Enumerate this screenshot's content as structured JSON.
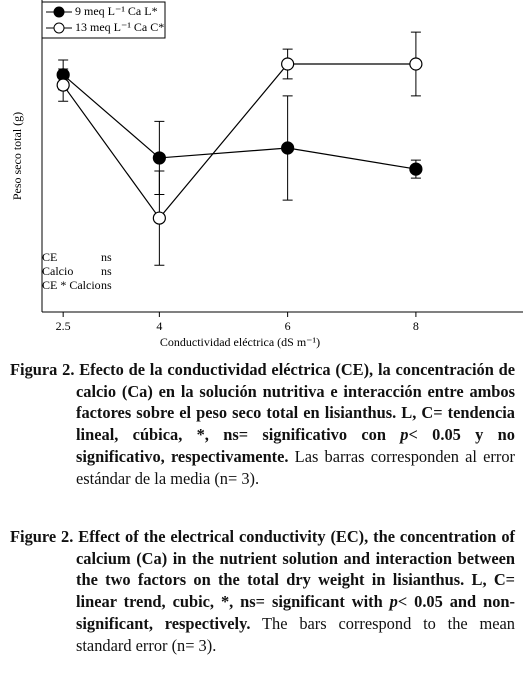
{
  "chart_data": {
    "type": "line",
    "ylabel": "Peso seco total (g)",
    "xlabel": "Conductividad eléctrica (dS m⁻¹)",
    "x": [
      2.5,
      4,
      6,
      8
    ],
    "xlim": [
      2.17,
      9.67
    ],
    "xticks": [
      2.5,
      4,
      6,
      8
    ],
    "ylim": [
      0,
      100
    ],
    "series": [
      {
        "name": "9 meq L⁻¹ Ca L*",
        "color": "#000000",
        "filled": true,
        "values": [
          76.5,
          49.7,
          52.9,
          46.1
        ],
        "errors": [
          4.8,
          11.8,
          16.8,
          2.9
        ]
      },
      {
        "name": "13 meq L⁻¹ Ca C*",
        "color": "#000000",
        "filled": false,
        "values": [
          73.2,
          30.3,
          80,
          80
        ],
        "errors": [
          5.2,
          15.2,
          4.8,
          10.3
        ]
      }
    ],
    "legend": "upper-left",
    "annotations": [
      [
        "CE",
        "ns"
      ],
      [
        "Calcio",
        "ns"
      ],
      [
        "CE * Calcio",
        "ns"
      ]
    ]
  },
  "captions": {
    "spanish": {
      "bold1": "Figura 2. Efecto de la conductividad eléctrica (CE), la concentración de calcio (Ca) en la solución nutritiva e interacción entre ambos factores sobre el peso seco total en lisianthus. L, C= tendencia lineal, cúbica, *, ns= significativo con ",
      "italic": "p",
      "bold2": "< 0.05 y no significativo, respectivamente.",
      "normal": " Las barras corresponden al error estándar de la media (n= 3)."
    },
    "english": {
      "bold1": "Figure 2. Effect of the electrical conductivity (EC), the concentration of calcium (Ca) in the nutrient solution and interaction between the two factors on the total dry weight in lisianthus. L, C= linear trend, cubic, *, ns= significant with ",
      "italic": "p",
      "bold2": "< 0.05 and non-significant, respectively.",
      "normal": " The bars correspond to the mean standard error (n= 3)."
    }
  }
}
